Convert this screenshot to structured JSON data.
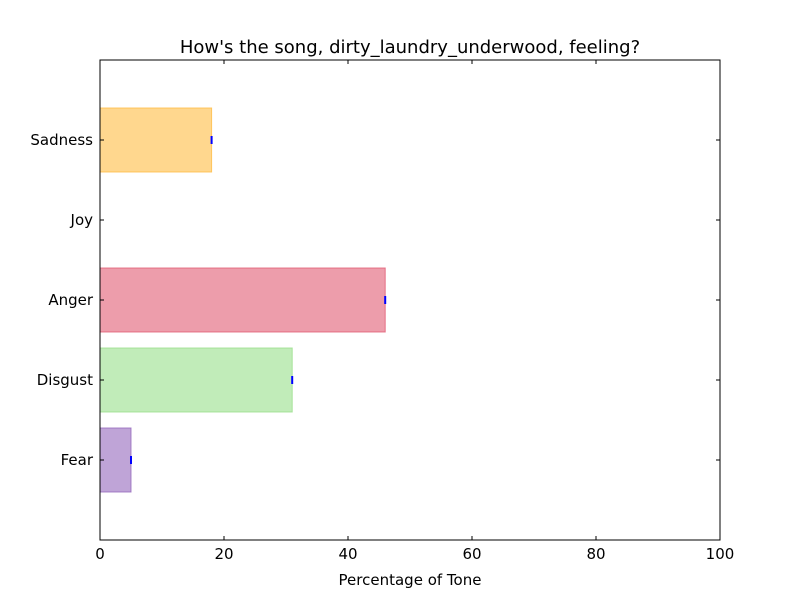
{
  "chart_data": {
    "type": "bar",
    "orientation": "horizontal",
    "title": "How's the song, dirty_laundry_underwood, feeling?",
    "xlabel": "Percentage of Tone",
    "ylabel": "",
    "xlim": [
      0,
      100
    ],
    "xticks": [
      0,
      20,
      40,
      60,
      80,
      100
    ],
    "categories": [
      "Fear",
      "Disgust",
      "Anger",
      "Joy",
      "Sadness"
    ],
    "values": [
      5,
      31,
      46,
      0,
      18
    ],
    "colors": [
      "#9467bd",
      "#98df8a",
      "#e15b73",
      "#c6c6c6",
      "#ffbc42"
    ],
    "grid": false,
    "legend": "none"
  }
}
